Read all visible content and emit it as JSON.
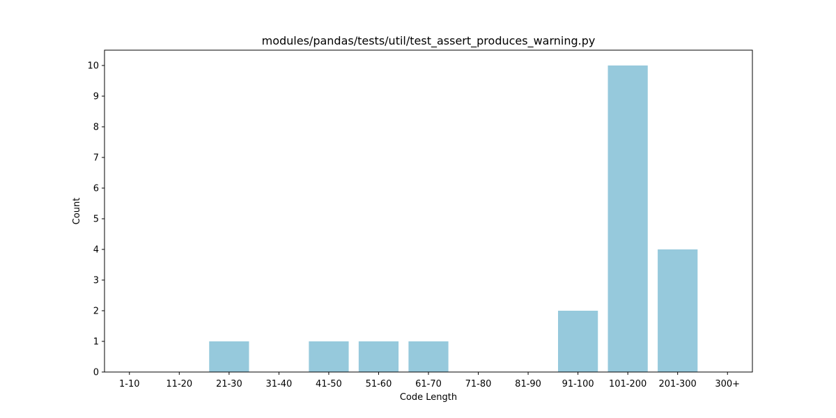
{
  "chart_data": {
    "type": "bar",
    "title": "modules/pandas/tests/util/test_assert_produces_warning.py",
    "xlabel": "Code Length",
    "ylabel": "Count",
    "categories": [
      "1-10",
      "11-20",
      "21-30",
      "31-40",
      "41-50",
      "51-60",
      "61-70",
      "71-80",
      "81-90",
      "91-100",
      "101-200",
      "201-300",
      "300+"
    ],
    "values": [
      0,
      0,
      1,
      0,
      1,
      1,
      1,
      0,
      0,
      2,
      10,
      4,
      0
    ],
    "ylim": [
      0,
      10.5
    ],
    "yticks": [
      "0",
      "1",
      "2",
      "3",
      "4",
      "5",
      "6",
      "7",
      "8",
      "9",
      "10"
    ],
    "bar_color": "#96c9dc",
    "grid": false,
    "legend": "none"
  }
}
